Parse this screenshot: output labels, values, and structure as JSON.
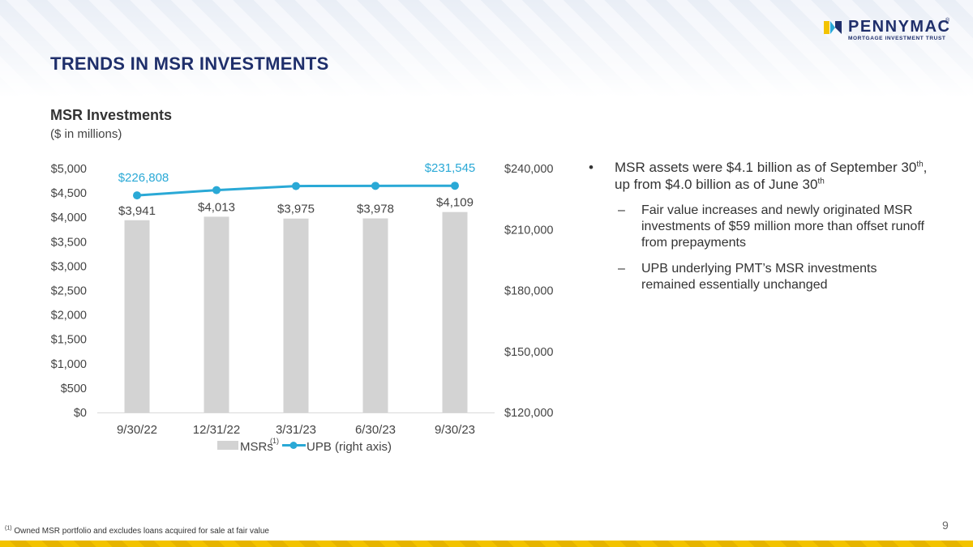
{
  "brand": {
    "name": "PENNYMAC",
    "registered": "®",
    "subtitle": "MORTGAGE INVESTMENT TRUST",
    "colors": {
      "navy": "#1f2f6b",
      "teal": "#2aa9d6",
      "yellow": "#f3c300",
      "bar_gray": "#d3d3d3"
    }
  },
  "page": {
    "title": "TRENDS IN MSR INVESTMENTS",
    "number": "9"
  },
  "chart_data": {
    "type": "bar",
    "title": "MSR Investments",
    "subtitle": "($ in millions)",
    "categories": [
      "9/30/22",
      "12/31/22",
      "3/31/23",
      "6/30/23",
      "9/30/23"
    ],
    "series": [
      {
        "name": "MSRs",
        "legend_sup": "(1)",
        "type": "bar",
        "axis": "left",
        "values": [
          3941,
          4013,
          3975,
          3978,
          4109
        ],
        "labels": [
          "$3,941",
          "$4,013",
          "$3,975",
          "$3,978",
          "$4,109"
        ]
      },
      {
        "name": "UPB (right axis)",
        "type": "line",
        "axis": "right",
        "values": [
          226808,
          229400,
          231400,
          231500,
          231545
        ],
        "labels": [
          "$226,808",
          "",
          "",
          "",
          "$231,545"
        ]
      }
    ],
    "left_axis": {
      "ylim": [
        0,
        5000
      ],
      "ticks": [
        "$0",
        "$500",
        "$1,000",
        "$1,500",
        "$2,000",
        "$2,500",
        "$3,000",
        "$3,500",
        "$4,000",
        "$4,500",
        "$5,000"
      ]
    },
    "right_axis": {
      "ylim": [
        120000,
        240000
      ],
      "ticks": [
        "$120,000",
        "$150,000",
        "$180,000",
        "$210,000",
        "$240,000"
      ]
    },
    "grid": false,
    "legend_position": "bottom"
  },
  "bullets": {
    "main_text": "MSR assets were $4.1 billion as of September 30",
    "main_sup1": "th",
    "main_mid": ", up from $4.0 billion as of June 30",
    "main_sup2": "th",
    "subs": [
      "Fair value increases and newly originated MSR investments of $59 million more than offset runoff from prepayments",
      "UPB underlying PMT’s MSR investments remained essentially unchanged"
    ],
    "bullet_glyph": "•",
    "dash_glyph": "–"
  },
  "footnote": {
    "sup": "(1)",
    "text": " Owned MSR portfolio and excludes loans acquired for sale at fair value"
  }
}
